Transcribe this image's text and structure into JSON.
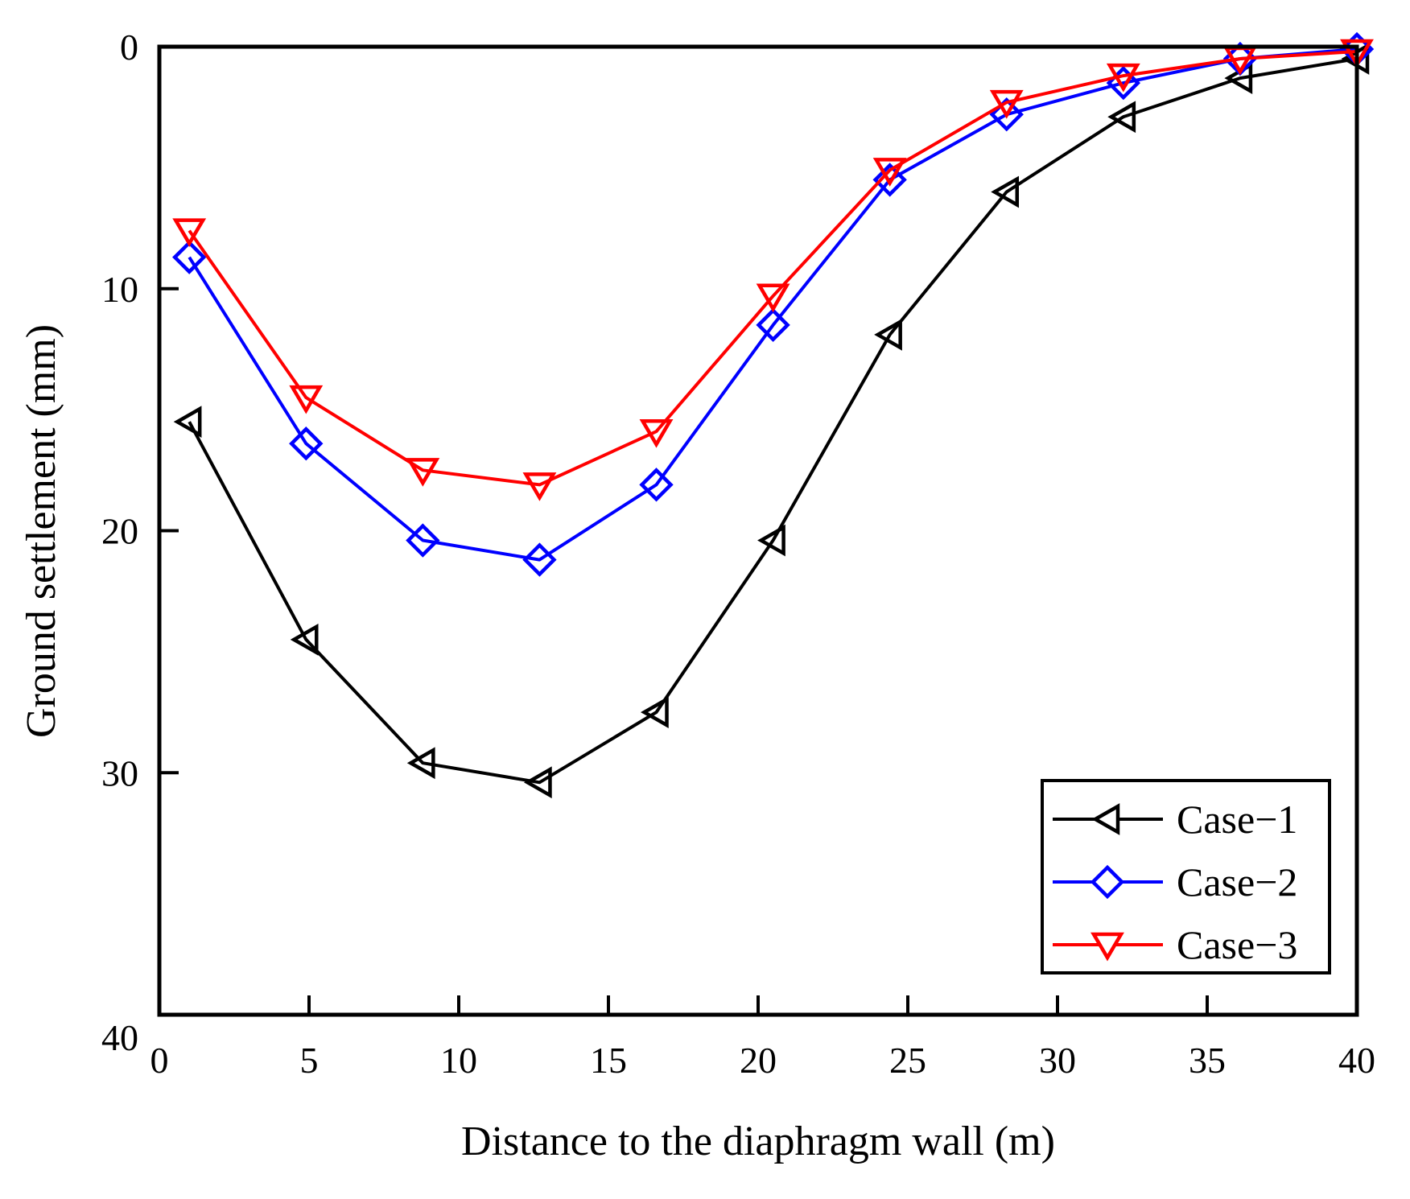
{
  "chart_data": {
    "type": "line",
    "title": "",
    "xlabel": "Distance to the diaphragm wall (m)",
    "ylabel": "Ground settlement (mm)",
    "xlim": [
      0,
      40
    ],
    "ylim": [
      0,
      40
    ],
    "y_inverted": true,
    "x_ticks": [
      0,
      5,
      10,
      15,
      20,
      25,
      30,
      35,
      40
    ],
    "y_ticks": [
      0,
      10,
      20,
      30,
      40
    ],
    "grid": false,
    "legend_position": "bottom-right",
    "x": [
      1,
      4.9,
      8.8,
      12.7,
      16.6,
      20.5,
      24.4,
      28.3,
      32.2,
      36.1,
      40
    ],
    "series": [
      {
        "name": "Case−1",
        "color": "#000000",
        "marker": "triangle-left",
        "values": [
          15.5,
          24.5,
          29.6,
          30.4,
          27.5,
          20.4,
          11.9,
          6.0,
          2.9,
          1.3,
          0.5
        ]
      },
      {
        "name": "Case−2",
        "color": "#0000ff",
        "marker": "diamond",
        "values": [
          8.7,
          16.4,
          20.4,
          21.2,
          18.1,
          11.5,
          5.5,
          2.8,
          1.5,
          0.5,
          0.1
        ]
      },
      {
        "name": "Case−3",
        "color": "#ff0000",
        "marker": "triangle-down",
        "values": [
          7.6,
          14.5,
          17.5,
          18.1,
          15.9,
          10.3,
          5.1,
          2.3,
          1.2,
          0.5,
          0.2
        ]
      }
    ]
  }
}
